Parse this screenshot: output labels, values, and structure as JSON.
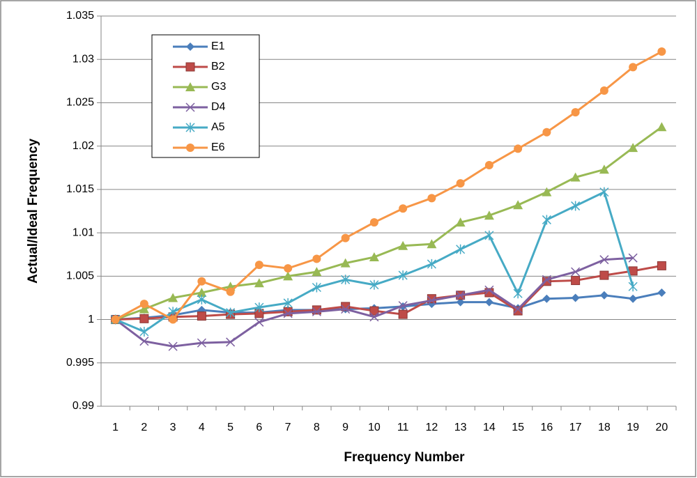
{
  "chart_data": {
    "type": "line",
    "x_label": "Frequency Number",
    "y_label": "Actual/Ideal Frequency",
    "categories": [
      "1",
      "2",
      "3",
      "4",
      "5",
      "6",
      "7",
      "8",
      "9",
      "10",
      "11",
      "12",
      "13",
      "14",
      "15",
      "16",
      "17",
      "18",
      "19",
      "20"
    ],
    "ylim": [
      0.99,
      1.035
    ],
    "yticks": [
      0.99,
      0.995,
      1,
      1.005,
      1.01,
      1.015,
      1.02,
      1.025,
      1.03,
      1.035
    ],
    "grid": true,
    "legend": "upper left",
    "series": [
      {
        "name": "E1",
        "color": "#4a7ebb",
        "marker": "diamond",
        "values": [
          1.0,
          1.0002,
          1.0005,
          1.0011,
          1.0008,
          1.0008,
          1.0011,
          1.0011,
          1.0012,
          1.0013,
          1.0015,
          1.0018,
          1.002,
          1.002,
          1.0013,
          1.0024,
          1.0025,
          1.0028,
          1.0024,
          1.0031
        ]
      },
      {
        "name": "B2",
        "color": "#be4b48",
        "marker": "square",
        "values": [
          1.0,
          1.0001,
          1.0003,
          1.0004,
          1.0006,
          1.0007,
          1.0009,
          1.0011,
          1.0015,
          1.001,
          1.0006,
          1.0024,
          1.0028,
          1.0031,
          1.001,
          1.0044,
          1.0045,
          1.0051,
          1.0056,
          1.0062
        ]
      },
      {
        "name": "G3",
        "color": "#98b954",
        "marker": "triangle",
        "values": [
          1.0,
          1.0012,
          1.0025,
          1.0031,
          1.0038,
          1.0042,
          1.005,
          1.0055,
          1.0065,
          1.0072,
          1.0085,
          1.0087,
          1.0112,
          1.012,
          1.0132,
          1.0147,
          1.0164,
          1.0173,
          1.0198,
          1.0222
        ]
      },
      {
        "name": "D4",
        "color": "#7d60a0",
        "marker": "x",
        "values": [
          1.0,
          0.9975,
          0.9969,
          0.9973,
          0.9974,
          0.9997,
          1.0007,
          1.0009,
          1.0012,
          1.0003,
          1.0016,
          1.0022,
          1.0028,
          1.0034,
          1.0012,
          1.0046,
          1.0055,
          1.0069,
          1.0071,
          null
        ]
      },
      {
        "name": "A5",
        "color": "#46aac5",
        "marker": "star",
        "values": [
          1.0,
          0.9986,
          1.0009,
          1.0023,
          1.0008,
          1.0014,
          1.0019,
          1.0037,
          1.0046,
          1.004,
          1.0051,
          1.0064,
          1.0081,
          1.0097,
          1.003,
          1.0115,
          1.0131,
          1.0147,
          1.0038,
          null
        ]
      },
      {
        "name": "E6",
        "color": "#f79646",
        "marker": "circle",
        "values": [
          1.0,
          1.0018,
          1.0,
          1.0044,
          1.0032,
          1.0063,
          1.0059,
          1.007,
          1.0094,
          1.0112,
          1.0128,
          1.014,
          1.0157,
          1.0178,
          1.0197,
          1.0216,
          1.0239,
          1.0264,
          1.0291,
          1.0309
        ]
      }
    ]
  }
}
